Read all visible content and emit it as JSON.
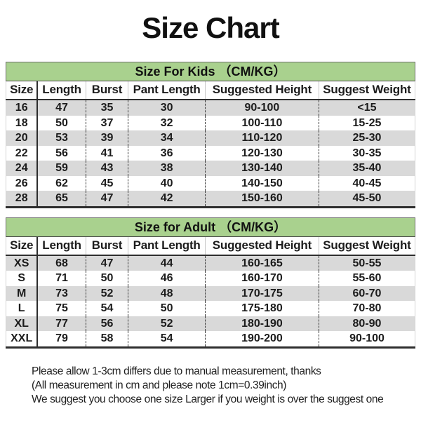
{
  "page": {
    "title": "Size Chart"
  },
  "columns": [
    "Size",
    "Length",
    "Burst",
    "Pant Length",
    "Suggested Height",
    "Suggest Weight"
  ],
  "kids_table": {
    "banner": "Size For Kids （CM/KG）",
    "rows": [
      [
        "16",
        "47",
        "35",
        "30",
        "90-100",
        "<15"
      ],
      [
        "18",
        "50",
        "37",
        "32",
        "100-110",
        "15-25"
      ],
      [
        "20",
        "53",
        "39",
        "34",
        "110-120",
        "25-30"
      ],
      [
        "22",
        "56",
        "41",
        "36",
        "120-130",
        "30-35"
      ],
      [
        "24",
        "59",
        "43",
        "38",
        "130-140",
        "35-40"
      ],
      [
        "26",
        "62",
        "45",
        "40",
        "140-150",
        "40-45"
      ],
      [
        "28",
        "65",
        "47",
        "42",
        "150-160",
        "45-50"
      ]
    ]
  },
  "adult_table": {
    "banner": "Size for Adult （CM/KG）",
    "rows": [
      [
        "XS",
        "68",
        "47",
        "44",
        "160-165",
        "50-55"
      ],
      [
        "S",
        "71",
        "50",
        "46",
        "160-170",
        "55-60"
      ],
      [
        "M",
        "73",
        "52",
        "48",
        "170-175",
        "60-70"
      ],
      [
        "L",
        "75",
        "54",
        "50",
        "175-180",
        "70-80"
      ],
      [
        "XL",
        "77",
        "56",
        "52",
        "180-190",
        "80-90"
      ],
      [
        "XXL",
        "79",
        "58",
        "54",
        "190-200",
        "90-100"
      ]
    ]
  },
  "notes": [
    "Please allow 1-3cm differs due to manual measurement, thanks",
    "(All measurement in cm and please note 1cm=0.39inch)",
    "We suggest you choose one size Larger if you weight is over the suggest one"
  ],
  "colors": {
    "banner_green": "#a9d18e",
    "row_stripe": "#d9d9d9",
    "text": "#1c1c1c"
  }
}
